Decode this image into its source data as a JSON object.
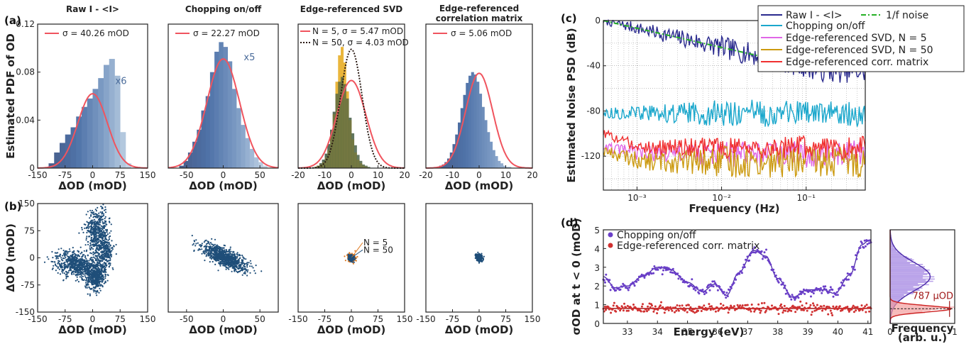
{
  "chart_data": [
    {
      "id": "a1",
      "type": "bar",
      "panel_label": "(a)",
      "title": "Raw I - <I>",
      "xlabel": "ΔOD (mOD)",
      "ylabel": "Estimated PDF of OD",
      "xlim": [
        -150,
        150
      ],
      "ylim": [
        0,
        0.12
      ],
      "xticks": [
        "-150",
        "-75",
        "0",
        "75",
        "150"
      ],
      "yticks": [
        "0",
        "0.04",
        "0.08",
        "0.12"
      ],
      "hist_start": -120,
      "bin_width": 15,
      "hist_values": [
        0.004,
        0.013,
        0.021,
        0.028,
        0.034,
        0.043,
        0.051,
        0.058,
        0.066,
        0.075,
        0.086,
        0.091,
        0.077,
        0.03,
        0.004
      ],
      "series": [
        {
          "name": "σ = 40.26 mOD",
          "type": "gaussian",
          "mu": 0,
          "sigma": 40.26,
          "amplitude": 0.062,
          "color": "#f0545e"
        }
      ],
      "annotation": "x6"
    },
    {
      "id": "a2",
      "type": "bar",
      "title": "Chopping on/off",
      "xlabel": "ΔOD (mOD)",
      "xlim": [
        -75,
        75
      ],
      "ylim": [
        0,
        0.12
      ],
      "xticks": [
        "-50",
        "0",
        "50"
      ],
      "hist_start": -60,
      "bin_width": 6,
      "hist_values": [
        0.002,
        0.006,
        0.013,
        0.022,
        0.032,
        0.048,
        0.06,
        0.08,
        0.097,
        0.105,
        0.101,
        0.089,
        0.066,
        0.05,
        0.036,
        0.025,
        0.016,
        0.009,
        0.005,
        0.002
      ],
      "series": [
        {
          "name": "σ = 22.27 mOD",
          "type": "gaussian",
          "mu": 0,
          "sigma": 22.27,
          "amplitude": 0.091,
          "color": "#f0545e"
        }
      ],
      "annotation": "x5"
    },
    {
      "id": "a3",
      "type": "bar",
      "title": "Edge-referenced SVD",
      "xlabel": "ΔOD (mOD)",
      "xlim": [
        -20,
        20
      ],
      "ylim": [
        0,
        0.12
      ],
      "xticks": [
        "-20",
        "-10",
        "0",
        "10",
        "20"
      ],
      "hist_start": -14,
      "bin_width": 1,
      "hist_values": [
        0.001,
        0.002,
        0.004,
        0.007,
        0.012,
        0.02,
        0.032,
        0.047,
        0.062,
        0.072,
        0.076,
        0.07,
        0.058,
        0.042,
        0.029,
        0.019,
        0.011,
        0.006,
        0.003,
        0.002,
        0.001
      ],
      "hist2_values": [
        0.001,
        0.002,
        0.003,
        0.005,
        0.009,
        0.015,
        0.027,
        0.045,
        0.072,
        0.094,
        0.101,
        0.088,
        0.064,
        0.04,
        0.024,
        0.013,
        0.007,
        0.004,
        0.002,
        0.001,
        0.0
      ],
      "series": [
        {
          "name": "N = 5, σ = 5.47 mOD",
          "type": "gaussian",
          "mu": 0,
          "sigma": 5.47,
          "amplitude": 0.073,
          "color": "#f0545e"
        },
        {
          "name": "N = 50, σ = 4.03 mOD",
          "type": "gaussian",
          "mu": 0,
          "sigma": 4.03,
          "amplitude": 0.099,
          "color": "#2a1a14"
        }
      ]
    },
    {
      "id": "a4",
      "type": "bar",
      "title": "Edge-referenced correlation matrix",
      "title_lines": [
        "Edge-referenced",
        "correlation matrix"
      ],
      "xlabel": "ΔOD (mOD)",
      "xlim": [
        -20,
        20
      ],
      "ylim": [
        0,
        0.12
      ],
      "xticks": [
        "-20",
        "-10",
        "0",
        "10",
        "20"
      ],
      "hist_start": -16,
      "bin_width": 1,
      "hist_values": [
        0.001,
        0.002,
        0.003,
        0.005,
        0.008,
        0.013,
        0.02,
        0.028,
        0.038,
        0.05,
        0.061,
        0.071,
        0.077,
        0.08,
        0.078,
        0.072,
        0.062,
        0.051,
        0.04,
        0.03,
        0.022,
        0.015,
        0.01,
        0.006,
        0.004,
        0.002,
        0.001,
        0.001,
        0.0,
        0.0,
        0.0,
        0.0
      ],
      "series": [
        {
          "name": "σ = 5.06 mOD",
          "type": "gaussian",
          "mu": 0,
          "sigma": 5.06,
          "amplitude": 0.079,
          "color": "#f0545e"
        }
      ]
    },
    {
      "id": "b1",
      "type": "scatter",
      "panel_label": "(b)",
      "xlabel": "ΔOD (mOD)",
      "ylabel": "ΔOD (mOD)",
      "xlim": [
        -150,
        150
      ],
      "ylim": [
        -150,
        150
      ],
      "xticks": [
        "-150",
        "-75",
        "0",
        "75",
        "150"
      ],
      "yticks": [
        "-150",
        "-75",
        "0",
        "75",
        "150"
      ],
      "clusters": [
        {
          "cx": -40,
          "cy": -20,
          "sx": 30,
          "sy": 18,
          "rho": -0.3,
          "n": 700
        },
        {
          "cx": 10,
          "cy": -50,
          "sx": 14,
          "sy": 20,
          "rho": 0.2,
          "n": 400
        },
        {
          "cx": 10,
          "cy": 70,
          "sx": 14,
          "sy": 32,
          "rho": 0.1,
          "n": 500
        },
        {
          "cx": 35,
          "cy": 15,
          "sx": 10,
          "sy": 22,
          "rho": 0.0,
          "n": 250
        }
      ],
      "color": "#1f4e79"
    },
    {
      "id": "b2",
      "type": "scatter",
      "xlabel": "ΔOD (mOD)",
      "xlim": [
        -75,
        75
      ],
      "ylim": [
        -75,
        75
      ],
      "xticks": [
        "-50",
        "0",
        "50"
      ],
      "clusters": [
        {
          "cx": 2,
          "cy": 0,
          "sx": 15,
          "sy": 9,
          "rho": -0.75,
          "n": 900
        }
      ],
      "color": "#1f4e79"
    },
    {
      "id": "b3",
      "type": "scatter",
      "xlabel": "ΔOD (mOD)",
      "xlim": [
        -150,
        150
      ],
      "ylim": [
        -150,
        150
      ],
      "xticks": [
        "-150",
        "-75",
        "0",
        "75",
        "150"
      ],
      "clusters": [
        {
          "cx": 0,
          "cy": 0,
          "sx": 5.5,
          "sy": 5.5,
          "rho": 0.0,
          "n": 220,
          "color": "#e07b23"
        },
        {
          "cx": 0,
          "cy": 0,
          "sx": 4,
          "sy": 4,
          "rho": 0.0,
          "n": 220,
          "color": "#1f4e79"
        }
      ],
      "labels": [
        "N = 5",
        "N = 50"
      ],
      "color": "#1f4e79"
    },
    {
      "id": "b4",
      "type": "scatter",
      "xlabel": "ΔOD (mOD)",
      "xlim": [
        -150,
        150
      ],
      "ylim": [
        -150,
        150
      ],
      "xticks": [
        "-150",
        "-75",
        "0",
        "75",
        "150"
      ],
      "clusters": [
        {
          "cx": 0,
          "cy": 0,
          "sx": 4.5,
          "sy": 4.5,
          "rho": 0.0,
          "n": 300
        }
      ],
      "color": "#1f4e79"
    },
    {
      "id": "c",
      "type": "line",
      "panel_label": "(c)",
      "xlabel": "Frequency (Hz)",
      "ylabel": "Estimated Noise PSD (dB)",
      "xscale": "log",
      "xlim": [
        0.0004,
        0.5
      ],
      "ylim": [
        -150,
        0
      ],
      "xticks": [
        "10⁻³",
        "10⁻²",
        "10⁻¹"
      ],
      "yticks": [
        "0",
        "-40",
        "-80",
        "-120"
      ],
      "grid": true,
      "legend": "top-right",
      "series": [
        {
          "name": "Raw I - <I>",
          "color": "#2a2a8e",
          "start": 0,
          "slope": -17,
          "flat": -45,
          "noise": 10
        },
        {
          "name": "1/f noise",
          "color": "#25b025",
          "dash": true,
          "start": 0,
          "slope": -17
        },
        {
          "name": "Chopping on/off",
          "color": "#1aa7cc",
          "start": -82,
          "flat": -82,
          "noise": 12
        },
        {
          "name": "Edge-referenced SVD, N = 5",
          "color": "#e066e6",
          "start": -112,
          "flat": -118,
          "noise": 12
        },
        {
          "name": "Edge-referenced SVD, N = 50",
          "color": "#cc9a10",
          "start": -115,
          "flat": -125,
          "noise": 14
        },
        {
          "name": "Edge-referenced corr. matrix",
          "color": "#f03030",
          "start": -100,
          "flat": -112,
          "noise": 10
        }
      ]
    },
    {
      "id": "d",
      "type": "scatter",
      "panel_label": "(d)",
      "xlabel": "Energy (eV)",
      "ylabel": "σOD at t < 0 (mOD)",
      "xlim": [
        32.2,
        41.1
      ],
      "ylim": [
        0,
        5
      ],
      "xticks": [
        "33",
        "34",
        "35",
        "36",
        "37",
        "38",
        "39",
        "40",
        "41"
      ],
      "yticks": [
        "0",
        "1",
        "2",
        "3",
        "4",
        "5"
      ],
      "series": [
        {
          "name": "Chopping on/off",
          "color": "#6a3fc8",
          "fit_color": "#4a2aa8",
          "profile": [
            [
              32.2,
              2.5
            ],
            [
              32.6,
              1.9
            ],
            [
              33.0,
              2.0
            ],
            [
              33.5,
              2.5
            ],
            [
              34.0,
              3.0
            ],
            [
              34.4,
              2.9
            ],
            [
              35.0,
              2.2
            ],
            [
              35.5,
              1.7
            ],
            [
              35.9,
              2.1
            ],
            [
              36.3,
              1.5
            ],
            [
              36.7,
              2.7
            ],
            [
              37.2,
              3.9
            ],
            [
              37.6,
              3.6
            ],
            [
              38.0,
              2.4
            ],
            [
              38.5,
              1.4
            ],
            [
              39.0,
              1.8
            ],
            [
              39.5,
              1.8
            ],
            [
              39.9,
              1.6
            ],
            [
              40.4,
              2.6
            ],
            [
              40.8,
              4.2
            ],
            [
              41.0,
              4.4
            ]
          ]
        },
        {
          "name": "Edge-referenced corr. matrix",
          "color": "#d03030",
          "fit_color": "#a01818",
          "level": 0.8
        }
      ]
    },
    {
      "id": "d_side",
      "type": "bar",
      "xlabel": "Frequency (arb. u.)",
      "xlabel_lines": [
        "Frequency",
        "(arb. u.)"
      ],
      "xlim": [
        0,
        1
      ],
      "ylim": [
        0,
        5
      ],
      "xticks": [
        "0",
        "1"
      ],
      "annotation": "787 μOD",
      "dist": [
        {
          "mu": 2.5,
          "sigma": 0.75,
          "amp": 0.62,
          "color": "#9b7ae0",
          "line": "#4a2aa8"
        },
        {
          "mu": 0.78,
          "sigma": 0.17,
          "amp": 0.95,
          "color": "#f29a9a",
          "line": "#cc2020"
        }
      ]
    }
  ]
}
